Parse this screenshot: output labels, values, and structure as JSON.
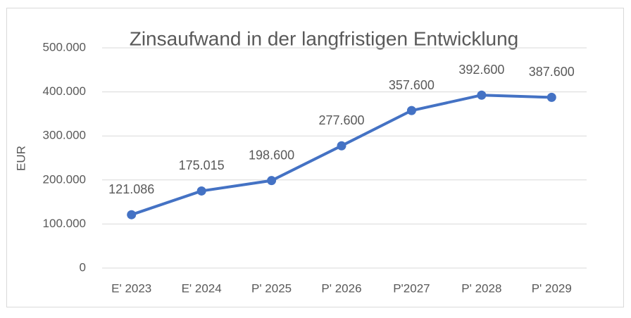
{
  "chart_data": {
    "type": "line",
    "title": "Zinsaufwand in der langfristigen Entwicklung",
    "y_label": "EUR",
    "categories": [
      "E' 2023",
      "E' 2024",
      "P' 2025",
      "P' 2026",
      "P'2027",
      "P' 2028",
      "P' 2029"
    ],
    "values": [
      121086,
      175015,
      198600,
      277600,
      357600,
      392600,
      387600
    ],
    "value_labels": [
      "121.086",
      "175.015",
      "198.600",
      "277.600",
      "357.600",
      "392.600",
      "387.600"
    ],
    "color": "#4472c4",
    "ylim": [
      0,
      500000
    ],
    "yticks": [
      0,
      {
        "value": 100000,
        "label": "100.000"
      },
      {
        "value": 200000,
        "label": "200.000"
      },
      {
        "value": 300000,
        "label": "300.000"
      },
      {
        "value": 400000,
        "label": "400.000"
      },
      {
        "value": 500000,
        "label": "500.000"
      }
    ],
    "grid": true
  }
}
